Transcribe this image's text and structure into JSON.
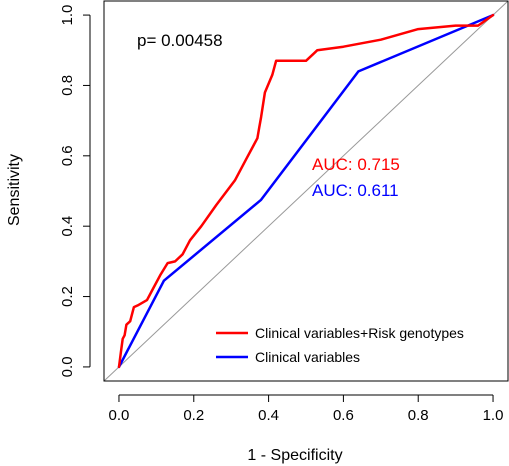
{
  "chart_data": {
    "type": "line",
    "xlabel": "1 - Specificity",
    "ylabel": "Sensitivity",
    "xlim": [
      -0.04,
      1.04
    ],
    "ylim": [
      -0.04,
      1.04
    ],
    "x_ticks": [
      0.0,
      0.2,
      0.4,
      0.6,
      0.8,
      1.0
    ],
    "y_ticks": [
      0.0,
      0.2,
      0.4,
      0.6,
      0.8,
      1.0
    ],
    "x_tick_labels": [
      "0.0",
      "0.2",
      "0.4",
      "0.6",
      "0.8",
      "1.0"
    ],
    "y_tick_labels": [
      "0.0",
      "0.2",
      "0.4",
      "0.6",
      "0.8",
      "1.0"
    ],
    "grid": false,
    "reference_line": {
      "from": [
        -0.04,
        -0.04
      ],
      "to": [
        1.04,
        1.04
      ],
      "color": "#999999"
    },
    "series": [
      {
        "name": "Clinical variables+Risk genotypes",
        "color": "#ff0000",
        "points": [
          [
            0.0,
            0.0
          ],
          [
            0.005,
            0.04
          ],
          [
            0.01,
            0.08
          ],
          [
            0.015,
            0.09
          ],
          [
            0.02,
            0.12
          ],
          [
            0.03,
            0.13
          ],
          [
            0.04,
            0.17
          ],
          [
            0.05,
            0.175
          ],
          [
            0.075,
            0.19
          ],
          [
            0.09,
            0.22
          ],
          [
            0.11,
            0.26
          ],
          [
            0.13,
            0.295
          ],
          [
            0.15,
            0.3
          ],
          [
            0.17,
            0.32
          ],
          [
            0.18,
            0.34
          ],
          [
            0.19,
            0.36
          ],
          [
            0.22,
            0.4
          ],
          [
            0.26,
            0.46
          ],
          [
            0.31,
            0.53
          ],
          [
            0.34,
            0.59
          ],
          [
            0.37,
            0.65
          ],
          [
            0.375,
            0.68
          ],
          [
            0.38,
            0.71
          ],
          [
            0.39,
            0.78
          ],
          [
            0.41,
            0.83
          ],
          [
            0.42,
            0.87
          ],
          [
            0.45,
            0.87
          ],
          [
            0.5,
            0.87
          ],
          [
            0.52,
            0.89
          ],
          [
            0.53,
            0.9
          ],
          [
            0.6,
            0.91
          ],
          [
            0.7,
            0.93
          ],
          [
            0.8,
            0.96
          ],
          [
            0.9,
            0.97
          ],
          [
            0.96,
            0.97
          ],
          [
            1.0,
            1.0
          ]
        ]
      },
      {
        "name": "Clinical variables",
        "color": "#0000ff",
        "points": [
          [
            0.0,
            0.0
          ],
          [
            0.12,
            0.245
          ],
          [
            0.38,
            0.475
          ],
          [
            0.64,
            0.84
          ],
          [
            1.0,
            1.0
          ]
        ]
      }
    ],
    "annotations": [
      {
        "text": "p= 0.00458",
        "color": "#000000"
      },
      {
        "text": "AUC: 0.715",
        "color": "#ff0000"
      },
      {
        "text": "AUC: 0.611",
        "color": "#0000ff"
      }
    ],
    "legend": {
      "placement": "bottom-right",
      "entries": [
        {
          "label": "Clinical variables+Risk genotypes",
          "color": "#ff0000"
        },
        {
          "label": "Clinical variables",
          "color": "#0000ff"
        }
      ]
    }
  }
}
